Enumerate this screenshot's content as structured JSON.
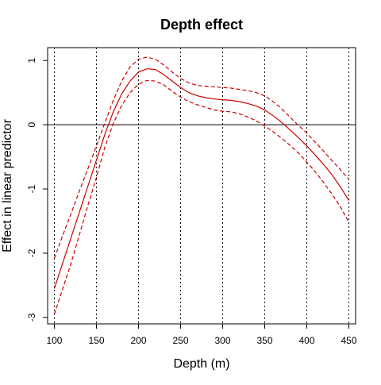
{
  "chart_data": {
    "type": "line",
    "title": "Depth effect",
    "xlabel": "Depth (m)",
    "ylabel": "Effect in linear predictor",
    "xlim": [
      92,
      458
    ],
    "ylim": [
      -3.1,
      1.2
    ],
    "x_ticks": [
      100,
      150,
      200,
      250,
      300,
      350,
      400,
      450
    ],
    "y_ticks": [
      -3,
      -2,
      -1,
      0,
      1
    ],
    "vertical_gridlines": [
      100,
      150,
      200,
      250,
      300,
      350,
      400,
      450
    ],
    "grid_style": "dotted",
    "reference_line_y": 0,
    "colors": {
      "fit": "#cc0000",
      "band": "#cc0000",
      "axis": "#000000"
    },
    "series": [
      {
        "role": "fit",
        "style": "solid",
        "x": [
          100,
          110,
          120,
          130,
          140,
          150,
          160,
          170,
          180,
          190,
          200,
          210,
          220,
          230,
          240,
          250,
          260,
          270,
          280,
          290,
          300,
          310,
          320,
          330,
          340,
          350,
          360,
          370,
          380,
          390,
          400,
          410,
          420,
          430,
          440,
          450
        ],
        "y": [
          -2.55,
          -2.15,
          -1.75,
          -1.35,
          -0.95,
          -0.55,
          -0.15,
          0.2,
          0.48,
          0.68,
          0.82,
          0.87,
          0.86,
          0.78,
          0.68,
          0.58,
          0.5,
          0.45,
          0.42,
          0.4,
          0.39,
          0.38,
          0.36,
          0.33,
          0.29,
          0.23,
          0.14,
          0.04,
          -0.08,
          -0.2,
          -0.33,
          -0.47,
          -0.62,
          -0.78,
          -0.97,
          -1.18
        ]
      },
      {
        "role": "upper",
        "style": "dashed",
        "x": [
          100,
          110,
          120,
          130,
          140,
          150,
          160,
          170,
          180,
          190,
          200,
          210,
          220,
          230,
          240,
          250,
          260,
          270,
          280,
          290,
          300,
          310,
          320,
          330,
          340,
          350,
          360,
          370,
          380,
          390,
          400,
          410,
          420,
          430,
          440,
          450
        ],
        "y": [
          -2.08,
          -1.72,
          -1.38,
          -1.02,
          -0.68,
          -0.33,
          0.03,
          0.38,
          0.68,
          0.9,
          1.02,
          1.05,
          1.02,
          0.93,
          0.82,
          0.72,
          0.65,
          0.61,
          0.6,
          0.59,
          0.58,
          0.57,
          0.55,
          0.53,
          0.5,
          0.45,
          0.36,
          0.25,
          0.12,
          -0.01,
          -0.13,
          -0.27,
          -0.41,
          -0.56,
          -0.7,
          -0.85
        ]
      },
      {
        "role": "lower",
        "style": "dashed",
        "x": [
          100,
          110,
          120,
          130,
          140,
          150,
          160,
          170,
          180,
          190,
          200,
          210,
          220,
          230,
          240,
          250,
          260,
          270,
          280,
          290,
          300,
          310,
          320,
          330,
          340,
          350,
          360,
          370,
          380,
          390,
          400,
          410,
          420,
          430,
          440,
          450
        ],
        "y": [
          -2.95,
          -2.55,
          -2.15,
          -1.7,
          -1.25,
          -0.82,
          -0.35,
          0.02,
          0.3,
          0.5,
          0.63,
          0.69,
          0.68,
          0.62,
          0.52,
          0.43,
          0.36,
          0.31,
          0.27,
          0.23,
          0.21,
          0.2,
          0.17,
          0.12,
          0.06,
          -0.02,
          -0.11,
          -0.21,
          -0.32,
          -0.44,
          -0.58,
          -0.73,
          -0.9,
          -1.08,
          -1.28,
          -1.52
        ]
      }
    ]
  }
}
